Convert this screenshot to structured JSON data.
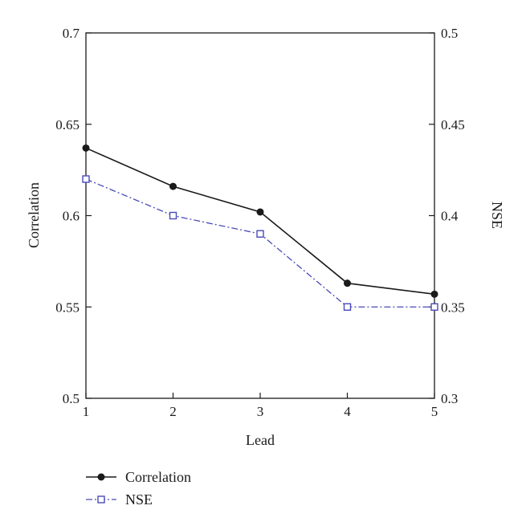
{
  "chart_data": {
    "type": "line",
    "xlabel": "Lead",
    "ylabel_left": "Correlation",
    "ylabel_right": "NSE",
    "x": [
      1,
      2,
      3,
      4,
      5
    ],
    "xlim": [
      1,
      5
    ],
    "ylim_left": [
      0.5,
      0.7
    ],
    "ylim_right": [
      0.3,
      0.5
    ],
    "x_ticks": [
      "1",
      "2",
      "3",
      "4",
      "5"
    ],
    "y_left_ticks": [
      "0.5",
      "0.55",
      "0.6",
      "0.65",
      "0.7"
    ],
    "y_right_ticks": [
      "0.3",
      "0.35",
      "0.4",
      "0.45",
      "0.5"
    ],
    "grid": false,
    "legend_position": "bottom-left",
    "series": [
      {
        "name": "Correlation",
        "axis": "left",
        "values": [
          0.637,
          0.616,
          0.602,
          0.563,
          0.557
        ],
        "color": "#1a1a1a",
        "line_style": "solid",
        "marker": "filled-circle"
      },
      {
        "name": "NSE",
        "axis": "right",
        "values": [
          0.42,
          0.4,
          0.39,
          0.35,
          0.35
        ],
        "color": "#4a4ab8",
        "line_style": "dash-dot",
        "marker": "open-square"
      }
    ]
  }
}
